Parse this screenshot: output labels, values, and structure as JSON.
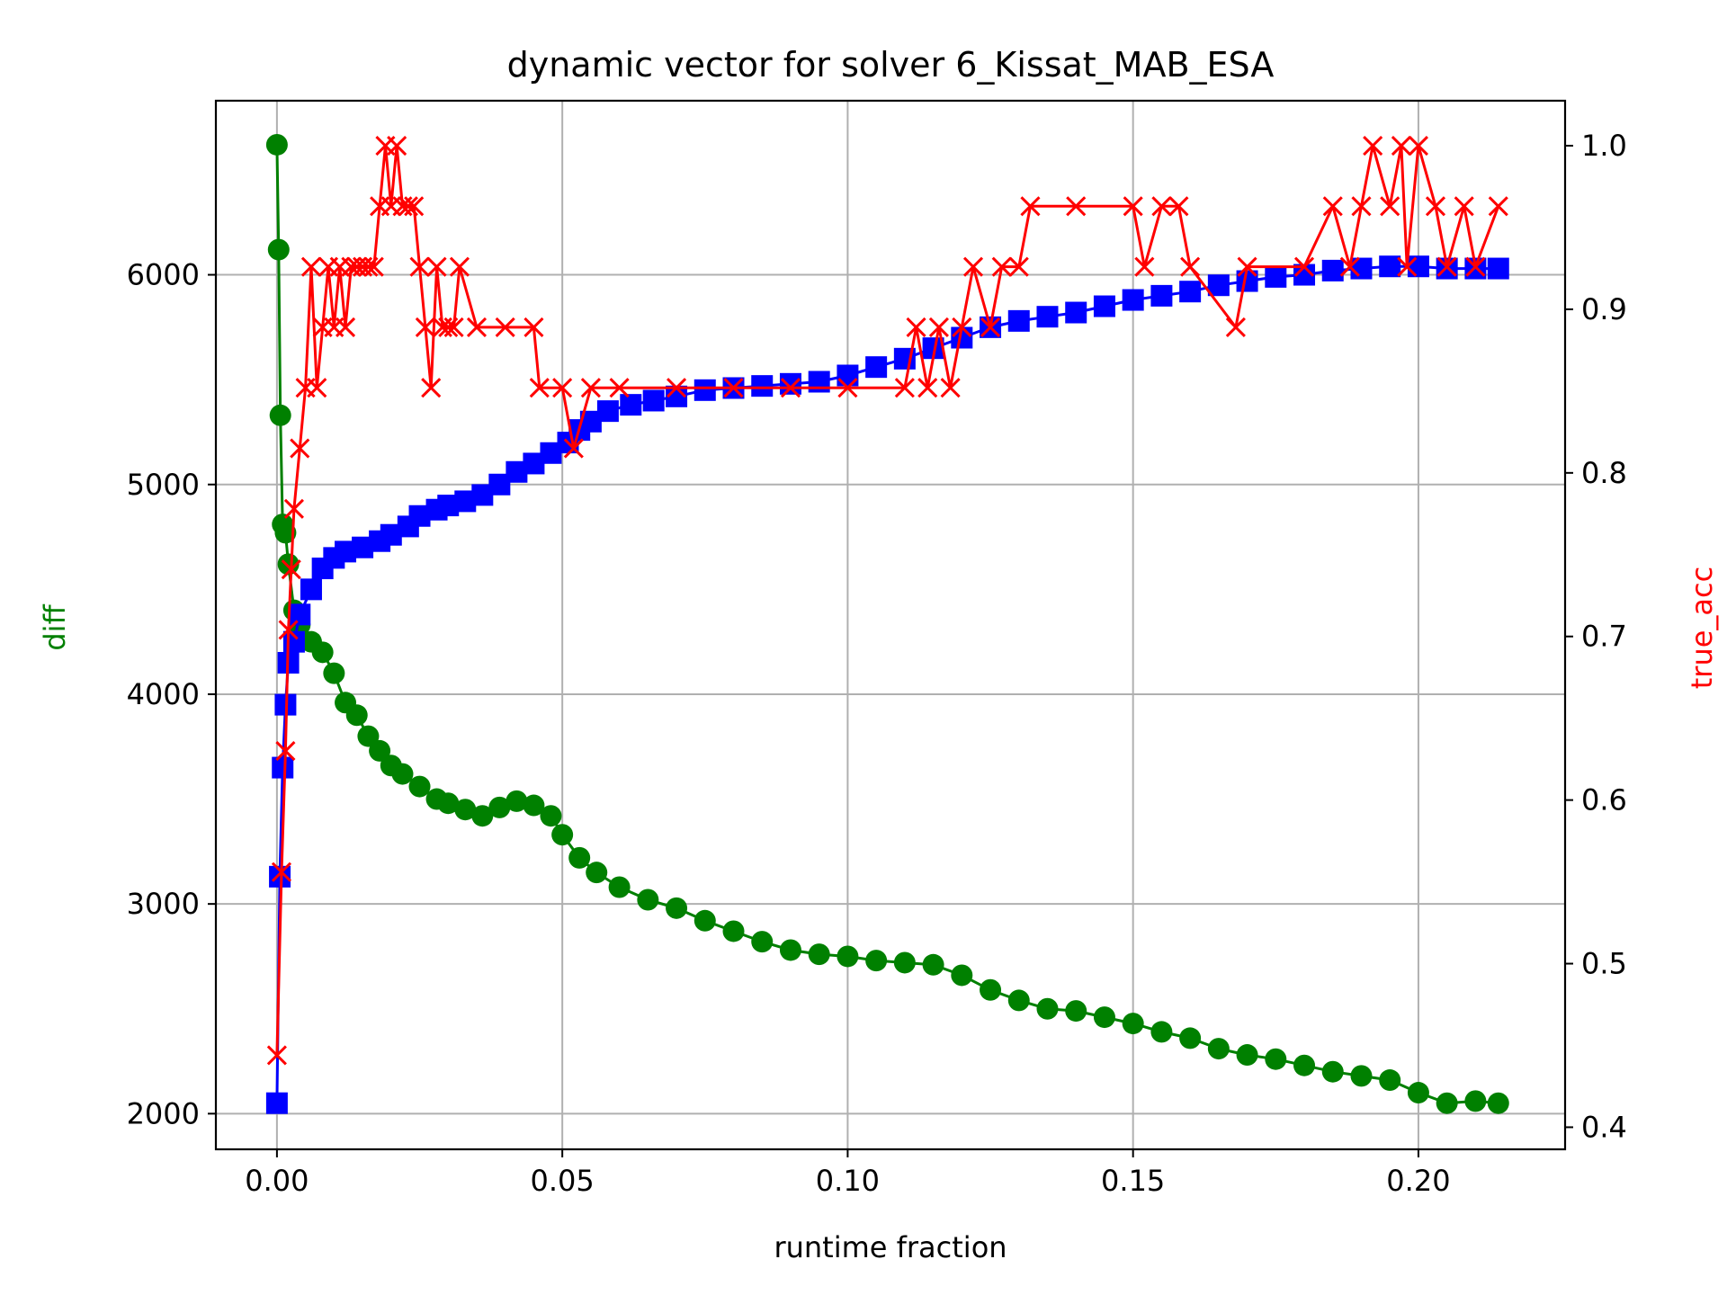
{
  "chart_data": {
    "type": "line",
    "title": "dynamic vector for solver 6_Kissat_MAB_ESA",
    "xlabel": "runtime fraction",
    "ylabel_left": "diff",
    "ylabel_right": "true_acc",
    "xlim": [
      -0.0107,
      0.2257
    ],
    "ylim_left": [
      1830,
      6830
    ],
    "ylim_right": [
      0.3865,
      1.0275
    ],
    "x_ticks": [
      0.0,
      0.05,
      0.1,
      0.15,
      0.2
    ],
    "x_tick_labels": [
      "0.00",
      "0.05",
      "0.10",
      "0.15",
      "0.20"
    ],
    "y_left_ticks": [
      2000,
      3000,
      4000,
      5000,
      6000
    ],
    "y_left_tick_labels": [
      "2000",
      "3000",
      "4000",
      "5000",
      "6000"
    ],
    "y_right_ticks": [
      0.4,
      0.5,
      0.6,
      0.7,
      0.8,
      0.9,
      1.0
    ],
    "y_right_tick_labels": [
      "0.4",
      "0.5",
      "0.6",
      "0.7",
      "0.8",
      "0.9",
      "1.0"
    ],
    "grid": true,
    "colors": {
      "diff": "#008000",
      "blue": "#0000ff",
      "true_acc": "#ff0000"
    },
    "series": [
      {
        "axis": "left",
        "marker": "circle",
        "color": "#008000",
        "x": [
          0.0,
          0.0003,
          0.0006,
          0.001,
          0.0015,
          0.002,
          0.003,
          0.004,
          0.006,
          0.008,
          0.01,
          0.012,
          0.014,
          0.016,
          0.018,
          0.02,
          0.022,
          0.025,
          0.028,
          0.03,
          0.033,
          0.036,
          0.039,
          0.042,
          0.045,
          0.048,
          0.05,
          0.053,
          0.056,
          0.06,
          0.065,
          0.07,
          0.075,
          0.08,
          0.085,
          0.09,
          0.095,
          0.1,
          0.105,
          0.11,
          0.115,
          0.12,
          0.125,
          0.13,
          0.135,
          0.14,
          0.145,
          0.15,
          0.155,
          0.16,
          0.165,
          0.17,
          0.175,
          0.18,
          0.185,
          0.19,
          0.195,
          0.2,
          0.205,
          0.21,
          0.214
        ],
        "y": [
          6620,
          6120,
          5330,
          4810,
          4770,
          4620,
          4400,
          4330,
          4250,
          4200,
          4100,
          3960,
          3900,
          3800,
          3730,
          3660,
          3620,
          3560,
          3500,
          3480,
          3450,
          3420,
          3460,
          3490,
          3470,
          3420,
          3330,
          3220,
          3150,
          3080,
          3020,
          2980,
          2920,
          2870,
          2820,
          2780,
          2760,
          2750,
          2730,
          2720,
          2710,
          2660,
          2590,
          2540,
          2500,
          2490,
          2460,
          2430,
          2390,
          2360,
          2310,
          2280,
          2260,
          2230,
          2200,
          2180,
          2160,
          2100,
          2050,
          2060,
          2050
        ]
      },
      {
        "axis": "left",
        "marker": "square",
        "color": "#0000ff",
        "x": [
          0.0,
          0.0005,
          0.001,
          0.0015,
          0.002,
          0.003,
          0.004,
          0.006,
          0.008,
          0.01,
          0.012,
          0.015,
          0.018,
          0.02,
          0.023,
          0.025,
          0.028,
          0.03,
          0.033,
          0.036,
          0.039,
          0.042,
          0.045,
          0.048,
          0.051,
          0.053,
          0.055,
          0.058,
          0.062,
          0.066,
          0.07,
          0.075,
          0.08,
          0.085,
          0.09,
          0.095,
          0.1,
          0.105,
          0.11,
          0.115,
          0.12,
          0.125,
          0.13,
          0.135,
          0.14,
          0.145,
          0.15,
          0.155,
          0.16,
          0.165,
          0.17,
          0.175,
          0.18,
          0.185,
          0.19,
          0.195,
          0.2,
          0.205,
          0.21,
          0.214
        ],
        "y": [
          2050,
          3130,
          3650,
          3950,
          4150,
          4250,
          4380,
          4500,
          4600,
          4650,
          4680,
          4700,
          4730,
          4760,
          4800,
          4850,
          4880,
          4900,
          4920,
          4950,
          5000,
          5060,
          5100,
          5150,
          5200,
          5260,
          5300,
          5350,
          5380,
          5400,
          5420,
          5450,
          5460,
          5470,
          5480,
          5490,
          5520,
          5560,
          5600,
          5650,
          5700,
          5750,
          5780,
          5800,
          5820,
          5850,
          5880,
          5900,
          5920,
          5950,
          5970,
          5990,
          6000,
          6020,
          6030,
          6040,
          6040,
          6030,
          6030,
          6030
        ]
      },
      {
        "axis": "right",
        "marker": "x",
        "color": "#ff0000",
        "x": [
          0.0,
          0.0008,
          0.0015,
          0.002,
          0.0025,
          0.003,
          0.004,
          0.005,
          0.006,
          0.007,
          0.008,
          0.009,
          0.01,
          0.011,
          0.012,
          0.013,
          0.014,
          0.015,
          0.016,
          0.017,
          0.018,
          0.019,
          0.02,
          0.021,
          0.022,
          0.023,
          0.024,
          0.025,
          0.026,
          0.027,
          0.028,
          0.029,
          0.03,
          0.031,
          0.032,
          0.035,
          0.04,
          0.045,
          0.046,
          0.05,
          0.052,
          0.055,
          0.06,
          0.07,
          0.08,
          0.09,
          0.1,
          0.11,
          0.112,
          0.114,
          0.116,
          0.118,
          0.12,
          0.122,
          0.125,
          0.127,
          0.13,
          0.132,
          0.14,
          0.15,
          0.152,
          0.155,
          0.158,
          0.16,
          0.168,
          0.17,
          0.18,
          0.185,
          0.188,
          0.19,
          0.192,
          0.195,
          0.197,
          0.198,
          0.2,
          0.203,
          0.205,
          0.208,
          0.21,
          0.214
        ],
        "y": [
          0.444,
          0.556,
          0.63,
          0.704,
          0.741,
          0.778,
          0.815,
          0.852,
          0.926,
          0.852,
          0.889,
          0.926,
          0.889,
          0.926,
          0.889,
          0.926,
          0.926,
          0.926,
          0.926,
          0.926,
          0.963,
          1.0,
          0.963,
          1.0,
          0.963,
          0.963,
          0.963,
          0.926,
          0.889,
          0.852,
          0.926,
          0.889,
          0.889,
          0.889,
          0.926,
          0.889,
          0.889,
          0.889,
          0.852,
          0.852,
          0.815,
          0.852,
          0.852,
          0.852,
          0.852,
          0.852,
          0.852,
          0.852,
          0.889,
          0.852,
          0.889,
          0.852,
          0.889,
          0.926,
          0.889,
          0.926,
          0.926,
          0.963,
          0.963,
          0.963,
          0.926,
          0.963,
          0.963,
          0.926,
          0.889,
          0.926,
          0.926,
          0.963,
          0.926,
          0.963,
          1.0,
          0.963,
          1.0,
          0.926,
          1.0,
          0.963,
          0.926,
          0.963,
          0.926,
          0.963
        ]
      }
    ]
  }
}
